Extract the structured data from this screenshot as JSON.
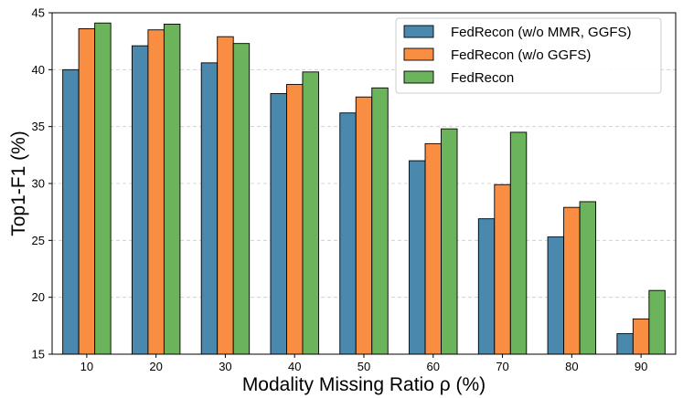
{
  "chart_data": {
    "type": "bar",
    "title": "",
    "xlabel": "Modality Missing Ratio ρ (%)",
    "ylabel": "Top1-F1 (%)",
    "ylim": [
      15,
      45
    ],
    "yticks": [
      15,
      20,
      25,
      30,
      35,
      40,
      45
    ],
    "grid": "horizontal-dashed",
    "legend_position": "top-right",
    "categories": [
      "10",
      "20",
      "30",
      "40",
      "50",
      "60",
      "70",
      "80",
      "90"
    ],
    "series": [
      {
        "name": "FedRecon (w/o MMR, GGFS)",
        "color": "#4a89ad",
        "values": [
          40.0,
          42.1,
          40.6,
          37.9,
          36.2,
          32.0,
          26.9,
          25.3,
          16.8
        ]
      },
      {
        "name": "FedRecon (w/o GGFS)",
        "color": "#f98e43",
        "values": [
          43.6,
          43.5,
          42.9,
          38.7,
          37.6,
          33.5,
          29.9,
          27.9,
          18.1
        ]
      },
      {
        "name": "FedRecon",
        "color": "#6bb45b",
        "values": [
          44.1,
          44.0,
          42.3,
          39.8,
          38.4,
          34.8,
          34.5,
          28.4,
          20.6
        ]
      }
    ]
  }
}
